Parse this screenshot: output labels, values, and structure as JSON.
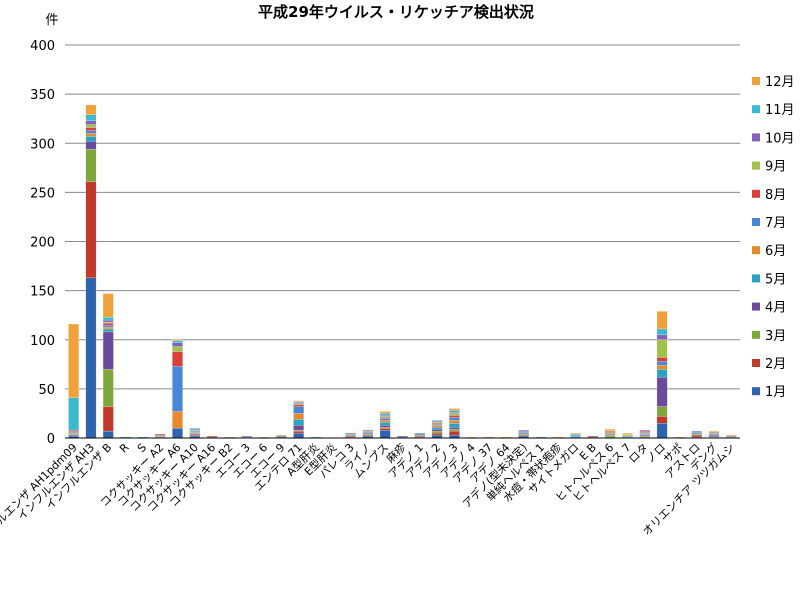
{
  "chart_data": {
    "type": "bar",
    "stacked": true,
    "title": "平成29年ウイルス・リケッチア検出状況",
    "ylabel": "件",
    "ylim": [
      0,
      400
    ],
    "yticks": [
      "0",
      "50",
      "100",
      "150",
      "200",
      "250",
      "300",
      "350",
      "400"
    ],
    "grid": true,
    "legend_position": "right",
    "categories": [
      "インフルエンザ AH1pdm09",
      "インフルエンザ AH3",
      "インフルエンザ B",
      "R",
      "S",
      "コクサッキー A2",
      "コクサッキー A6",
      "コクサッキー A10",
      "コクサッキー A16",
      "コクサッキー B2",
      "エコー 3",
      "エコー 6",
      "エコー 9",
      "エンテロ 71",
      "A型肝炎",
      "E型肝炎",
      "パレコ 3",
      "ライノ",
      "ムンプス",
      "麻疹",
      "アデノ 1",
      "アデノ 2",
      "アデノ 3",
      "アデノ 4",
      "アデノ 37",
      "アデノ 64",
      "アデノ(型未決定)",
      "単純ヘルペス 1",
      "水痘・帯状疱疹",
      "サイトメガロ",
      "E B",
      "ヒトヘルペス 6",
      "ヒトヘルペス 7",
      "ロタ",
      "ノロ",
      "サポ",
      "アストロ",
      "デング",
      "オリエンチア ツツガムシ"
    ],
    "series": [
      {
        "name": "1月",
        "color": "#2e64ad",
        "values": [
          2,
          163,
          7,
          0,
          0,
          0,
          10,
          2,
          1,
          0,
          0,
          0,
          1,
          5,
          0,
          0,
          1,
          2,
          8,
          1,
          1,
          3,
          3,
          0,
          0,
          0,
          2,
          0,
          0,
          0,
          0,
          0,
          0,
          0,
          15,
          0,
          1,
          0,
          0
        ]
      },
      {
        "name": "2月",
        "color": "#c0392b",
        "values": [
          1,
          98,
          25,
          0,
          0,
          0,
          0,
          1,
          1,
          0,
          0,
          0,
          0,
          2,
          0,
          0,
          1,
          1,
          2,
          0,
          1,
          2,
          4,
          0,
          0,
          0,
          1,
          0,
          0,
          0,
          1,
          0,
          0,
          1,
          7,
          0,
          2,
          0,
          0
        ]
      },
      {
        "name": "3月",
        "color": "#7ea63a",
        "values": [
          0,
          33,
          38,
          0,
          0,
          0,
          0,
          0,
          0,
          0,
          0,
          0,
          0,
          1,
          0,
          0,
          0,
          1,
          1,
          0,
          1,
          2,
          2,
          0,
          0,
          0,
          1,
          0,
          0,
          0,
          0,
          2,
          1,
          1,
          10,
          0,
          1,
          0,
          0
        ]
      },
      {
        "name": "4月",
        "color": "#6b4a9c",
        "values": [
          0,
          8,
          38,
          0,
          0,
          0,
          0,
          1,
          0,
          0,
          0,
          0,
          1,
          5,
          0,
          0,
          0,
          1,
          2,
          1,
          1,
          2,
          2,
          0,
          0,
          0,
          1,
          0,
          0,
          1,
          1,
          0,
          0,
          1,
          30,
          0,
          1,
          0,
          0
        ]
      },
      {
        "name": "5月",
        "color": "#29a3c2",
        "values": [
          1,
          5,
          3,
          1,
          1,
          1,
          0,
          1,
          0,
          0,
          1,
          0,
          0,
          6,
          0,
          0,
          1,
          1,
          3,
          0,
          0,
          2,
          4,
          0,
          0,
          0,
          1,
          1,
          0,
          1,
          0,
          1,
          1,
          1,
          8,
          0,
          1,
          0,
          1
        ]
      },
      {
        "name": "6月",
        "color": "#e8892c",
        "values": [
          1,
          3,
          2,
          0,
          0,
          1,
          17,
          1,
          0,
          0,
          0,
          0,
          0,
          6,
          0,
          0,
          1,
          1,
          2,
          0,
          0,
          2,
          3,
          0,
          0,
          0,
          0,
          0,
          0,
          0,
          0,
          2,
          1,
          1,
          4,
          0,
          0,
          1,
          0
        ]
      },
      {
        "name": "7月",
        "color": "#4a86d6",
        "values": [
          1,
          3,
          2,
          0,
          0,
          1,
          46,
          1,
          0,
          0,
          0,
          0,
          0,
          7,
          0,
          0,
          0,
          1,
          2,
          0,
          1,
          1,
          3,
          0,
          0,
          0,
          1,
          0,
          0,
          1,
          0,
          1,
          0,
          1,
          4,
          0,
          1,
          2,
          0
        ]
      },
      {
        "name": "8月",
        "color": "#d9403b",
        "values": [
          1,
          3,
          2,
          0,
          0,
          1,
          15,
          0,
          0,
          0,
          0,
          0,
          0,
          2,
          0,
          0,
          0,
          0,
          1,
          0,
          0,
          1,
          2,
          0,
          0,
          0,
          0,
          0,
          0,
          0,
          0,
          1,
          0,
          1,
          4,
          0,
          0,
          1,
          0
        ]
      },
      {
        "name": "9月",
        "color": "#9fc24a",
        "values": [
          0,
          3,
          1,
          0,
          0,
          0,
          5,
          1,
          0,
          1,
          0,
          1,
          1,
          1,
          0,
          0,
          0,
          0,
          1,
          0,
          0,
          1,
          2,
          0,
          0,
          0,
          0,
          0,
          0,
          0,
          0,
          1,
          1,
          0,
          18,
          0,
          0,
          1,
          0
        ]
      },
      {
        "name": "10月",
        "color": "#8461b8",
        "values": [
          1,
          4,
          2,
          0,
          0,
          0,
          4,
          1,
          0,
          0,
          1,
          0,
          0,
          1,
          0,
          0,
          1,
          0,
          1,
          0,
          0,
          1,
          1,
          0,
          0,
          0,
          1,
          0,
          0,
          0,
          0,
          0,
          0,
          1,
          5,
          0,
          0,
          1,
          1
        ]
      },
      {
        "name": "11月",
        "color": "#3bb9d1",
        "values": [
          33,
          6,
          3,
          0,
          0,
          0,
          2,
          1,
          0,
          0,
          0,
          0,
          0,
          1,
          1,
          0,
          0,
          0,
          2,
          0,
          0,
          1,
          2,
          0,
          0,
          0,
          0,
          0,
          0,
          1,
          0,
          0,
          0,
          0,
          6,
          0,
          0,
          0,
          0
        ]
      },
      {
        "name": "12月",
        "color": "#f0a23a",
        "values": [
          75,
          10,
          24,
          0,
          0,
          0,
          1,
          0,
          0,
          0,
          0,
          0,
          0,
          1,
          0,
          0,
          0,
          0,
          2,
          0,
          0,
          0,
          2,
          1,
          1,
          1,
          0,
          0,
          1,
          1,
          0,
          1,
          1,
          0,
          18,
          1,
          0,
          1,
          1
        ]
      }
    ]
  }
}
